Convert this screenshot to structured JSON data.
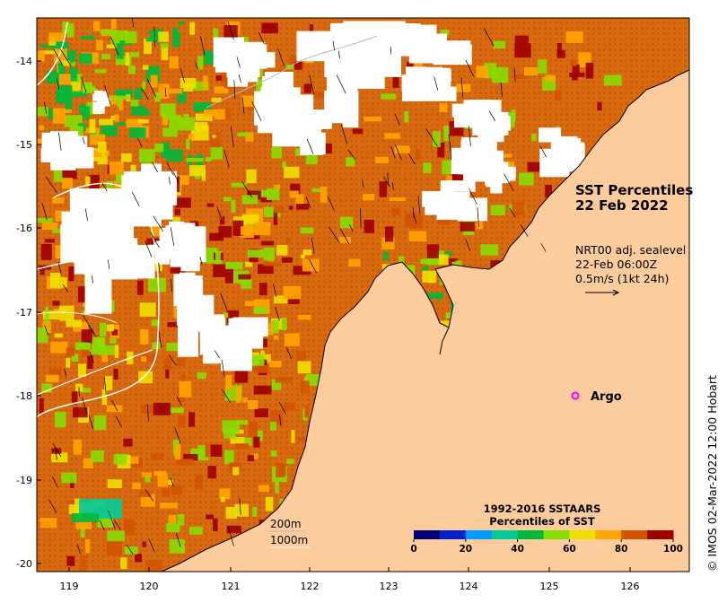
{
  "map": {
    "title_line1": "SST Percentiles",
    "title_line2": "22 Feb 2022",
    "current_line1": "NRT00 adj. sealevel",
    "current_line2": "22-Feb 06:00Z",
    "current_line3": "0.5m/s (1kt 24h)",
    "argo_label": "Argo",
    "isobath_200": "200m",
    "isobath_1000": "1000m",
    "credit": "© IMOS 02-Mar-2022 12:00 Hobart",
    "lon_ticks": [
      "119",
      "120",
      "121",
      "122",
      "123",
      "124",
      "125",
      "126"
    ],
    "lat_ticks": [
      "-14",
      "-15",
      "-16",
      "-17",
      "-18",
      "-19",
      "-20"
    ],
    "colors": {
      "land": "#fdcc9c",
      "argo": "#ff00ff"
    }
  },
  "colorbar": {
    "title_line1": "1992-2016 SSTAARS",
    "title_line2": "Percentiles of SST",
    "ticks": [
      "0",
      "20",
      "40",
      "60",
      "80",
      "100"
    ],
    "colors": [
      "#00007a",
      "#0022cc",
      "#0099ff",
      "#00cc99",
      "#00b83a",
      "#88dd00",
      "#f0e000",
      "#ffa500",
      "#d35400",
      "#a00000"
    ]
  }
}
